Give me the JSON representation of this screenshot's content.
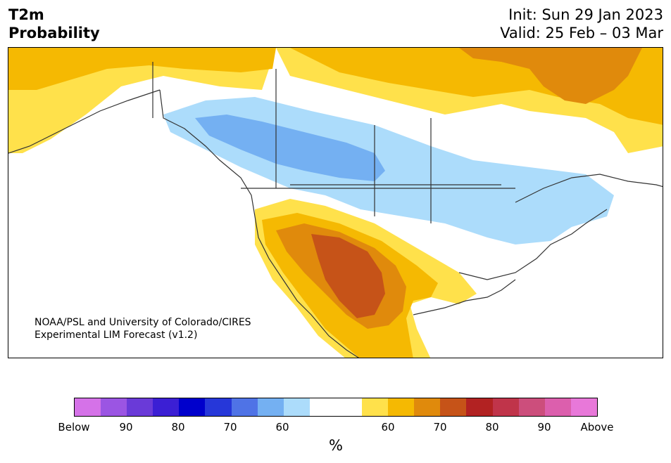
{
  "header": {
    "title_line1": "T2m",
    "title_line2": "Probability",
    "init_text": "Init: Sun 29 Jan 2023",
    "valid_text": "Valid: 25 Feb – 03 Mar"
  },
  "credit": {
    "line1": "NOAA/PSL and University of Colorado/CIRES",
    "line2": "Experimental LIM Forecast (v1.2)"
  },
  "colorbar": {
    "unit": "%",
    "colors": [
      "#d572e8",
      "#9b55e3",
      "#6a3ad8",
      "#3b1fd4",
      "#0000cc",
      "#2637d9",
      "#4f73e6",
      "#74b0f2",
      "#acdcfb",
      "#ffffff",
      "#ffffff",
      "#ffe14b",
      "#f5b902",
      "#e08a0c",
      "#c65318",
      "#b22222",
      "#c0344a",
      "#cc4e7c",
      "#dc5fad",
      "#e878d9"
    ],
    "labels": [
      "Below",
      "90",
      "80",
      "70",
      "60",
      "60",
      "70",
      "80",
      "90",
      "Above"
    ]
  },
  "colors": {
    "above_50": "#ffe14b",
    "above_60": "#f5b902",
    "above_70": "#e08a0c",
    "above_80": "#c65318",
    "below_50": "#acdcfb",
    "below_60": "#74b0f2",
    "coast": "#333333"
  }
}
